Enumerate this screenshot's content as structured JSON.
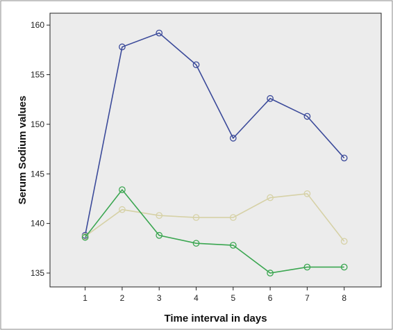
{
  "chart_data": {
    "type": "line",
    "title": "",
    "xlabel": "Time interval in days",
    "ylabel": "Serum Sodium values",
    "x": [
      1,
      2,
      3,
      4,
      5,
      6,
      7,
      8
    ],
    "xlim": [
      0.05,
      9.0
    ],
    "ylim": [
      133.6,
      161.2
    ],
    "xticks": [
      1,
      2,
      3,
      4,
      5,
      6,
      7,
      8
    ],
    "yticks": [
      135,
      140,
      145,
      150,
      155,
      160
    ],
    "grid": false,
    "legend": "none",
    "plot_background": "#ececec",
    "series": [
      {
        "color": "#3b4a9a",
        "values": [
          138.8,
          157.8,
          159.2,
          156.0,
          148.6,
          152.6,
          150.8,
          146.6
        ]
      },
      {
        "color": "#d6d1a6",
        "values": [
          138.7,
          141.4,
          140.8,
          140.6,
          140.6,
          142.6,
          143.0,
          138.2
        ]
      },
      {
        "color": "#3aa650",
        "values": [
          138.6,
          143.4,
          138.8,
          138.0,
          137.8,
          135.0,
          135.6,
          135.6
        ]
      }
    ]
  }
}
